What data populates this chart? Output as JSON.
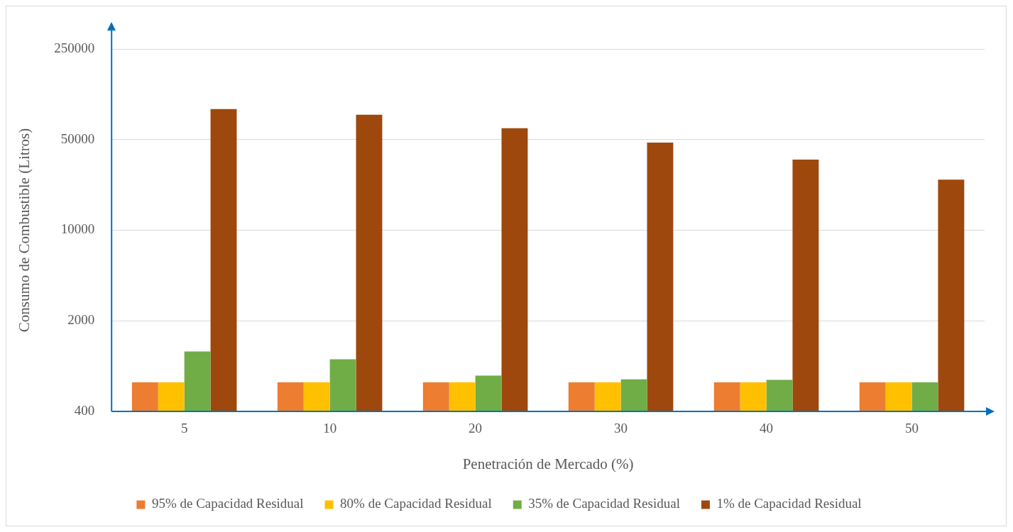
{
  "chart_data": {
    "type": "bar",
    "xlabel": "Penetración de Mercado (%)",
    "ylabel": "Consumo de Combustible (Litros)",
    "categories": [
      "5",
      "10",
      "20",
      "30",
      "40",
      "50"
    ],
    "log": "y",
    "ylim": [
      400,
      250000
    ],
    "yticks": [
      400,
      2000,
      10000,
      50000,
      250000
    ],
    "grid": "y",
    "legend": "bottom",
    "series": [
      {
        "name": "95% de Capacidad Residual",
        "color": "#ed7d31",
        "values": [
          670,
          670,
          670,
          670,
          670,
          670
        ]
      },
      {
        "name": "80% de Capacidad Residual",
        "color": "#ffc000",
        "values": [
          670,
          670,
          670,
          670,
          670,
          670
        ]
      },
      {
        "name": "35% de Capacidad Residual",
        "color": "#70ad47",
        "values": [
          1160,
          1010,
          755,
          708,
          700,
          670
        ]
      },
      {
        "name": "1% de Capacidad Residual",
        "color": "#9e480e",
        "values": [
          86000,
          77800,
          61100,
          47400,
          35000,
          24500
        ]
      }
    ]
  }
}
